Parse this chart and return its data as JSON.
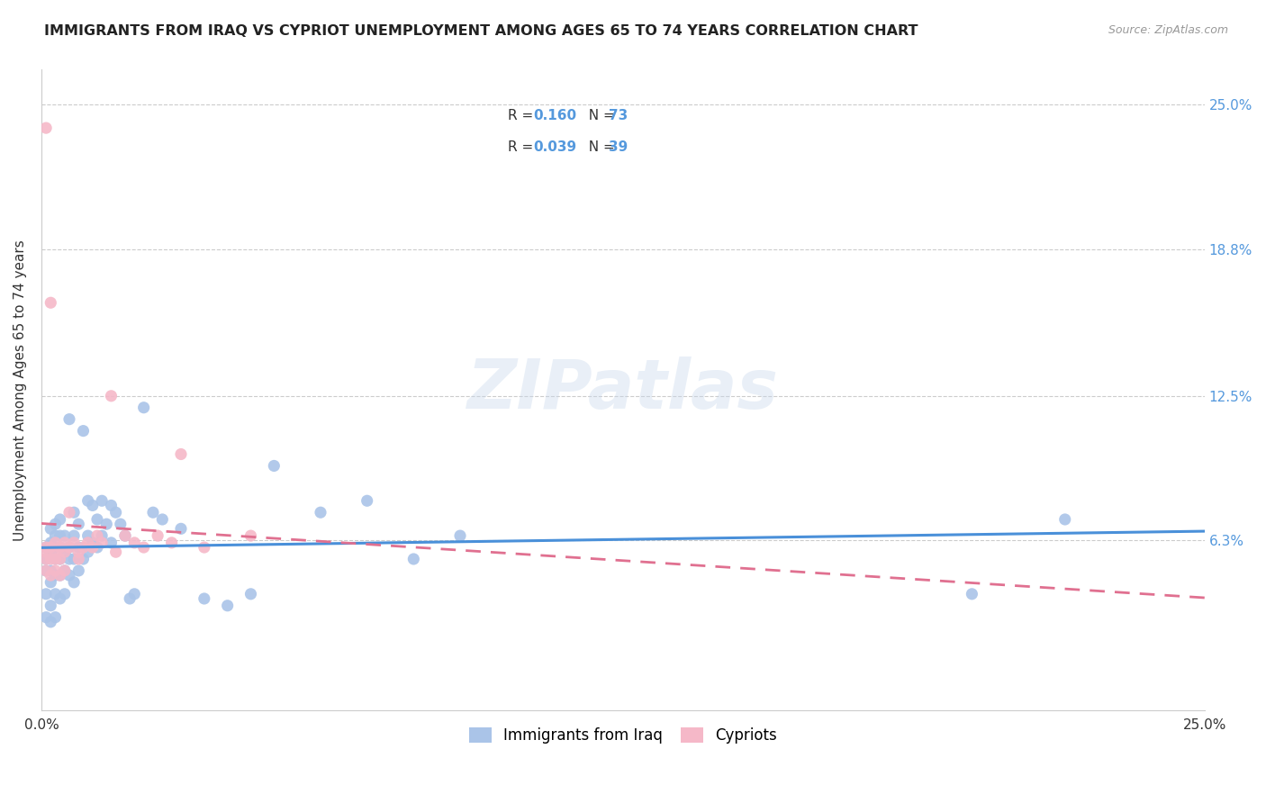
{
  "title": "IMMIGRANTS FROM IRAQ VS CYPRIOT UNEMPLOYMENT AMONG AGES 65 TO 74 YEARS CORRELATION CHART",
  "source": "Source: ZipAtlas.com",
  "ylabel": "Unemployment Among Ages 65 to 74 years",
  "xlim": [
    0.0,
    0.25
  ],
  "ylim": [
    -0.01,
    0.265
  ],
  "blue_R": "0.160",
  "blue_N": "73",
  "pink_R": "0.039",
  "pink_N": "39",
  "blue_color": "#aac4e8",
  "pink_color": "#f5b8c8",
  "blue_line_color": "#4a90d9",
  "pink_line_color": "#e07090",
  "right_label_color": "#5599dd",
  "watermark": "ZIPatlas",
  "background_color": "#ffffff",
  "grid_color": "#cccccc",
  "ytick_vals": [
    0.063,
    0.125,
    0.188,
    0.25
  ],
  "ytick_labels": [
    "6.3%",
    "12.5%",
    "18.8%",
    "25.0%"
  ],
  "blue_scatter_x": [
    0.001,
    0.001,
    0.001,
    0.001,
    0.001,
    0.002,
    0.002,
    0.002,
    0.002,
    0.002,
    0.002,
    0.002,
    0.003,
    0.003,
    0.003,
    0.003,
    0.003,
    0.003,
    0.003,
    0.004,
    0.004,
    0.004,
    0.004,
    0.004,
    0.004,
    0.005,
    0.005,
    0.005,
    0.005,
    0.006,
    0.006,
    0.006,
    0.006,
    0.007,
    0.007,
    0.007,
    0.007,
    0.008,
    0.008,
    0.008,
    0.009,
    0.009,
    0.01,
    0.01,
    0.01,
    0.011,
    0.011,
    0.012,
    0.012,
    0.013,
    0.013,
    0.014,
    0.015,
    0.015,
    0.016,
    0.017,
    0.018,
    0.019,
    0.02,
    0.022,
    0.024,
    0.026,
    0.03,
    0.035,
    0.04,
    0.045,
    0.05,
    0.06,
    0.07,
    0.08,
    0.09,
    0.2,
    0.22
  ],
  "blue_scatter_y": [
    0.03,
    0.04,
    0.05,
    0.055,
    0.06,
    0.028,
    0.035,
    0.045,
    0.05,
    0.058,
    0.062,
    0.068,
    0.03,
    0.04,
    0.048,
    0.055,
    0.06,
    0.065,
    0.07,
    0.038,
    0.048,
    0.055,
    0.06,
    0.065,
    0.072,
    0.04,
    0.05,
    0.058,
    0.065,
    0.048,
    0.055,
    0.06,
    0.115,
    0.045,
    0.055,
    0.065,
    0.075,
    0.05,
    0.06,
    0.07,
    0.055,
    0.11,
    0.058,
    0.065,
    0.08,
    0.062,
    0.078,
    0.06,
    0.072,
    0.065,
    0.08,
    0.07,
    0.062,
    0.078,
    0.075,
    0.07,
    0.065,
    0.038,
    0.04,
    0.12,
    0.075,
    0.072,
    0.068,
    0.038,
    0.035,
    0.04,
    0.095,
    0.075,
    0.08,
    0.055,
    0.065,
    0.04,
    0.072
  ],
  "pink_scatter_x": [
    0.001,
    0.001,
    0.001,
    0.001,
    0.001,
    0.002,
    0.002,
    0.002,
    0.002,
    0.003,
    0.003,
    0.003,
    0.003,
    0.004,
    0.004,
    0.004,
    0.005,
    0.005,
    0.005,
    0.006,
    0.006,
    0.007,
    0.008,
    0.008,
    0.009,
    0.01,
    0.011,
    0.012,
    0.013,
    0.015,
    0.016,
    0.018,
    0.02,
    0.022,
    0.025,
    0.028,
    0.03,
    0.035,
    0.045
  ],
  "pink_scatter_y": [
    0.24,
    0.055,
    0.06,
    0.058,
    0.05,
    0.055,
    0.06,
    0.048,
    0.165,
    0.058,
    0.062,
    0.05,
    0.055,
    0.06,
    0.055,
    0.048,
    0.058,
    0.062,
    0.05,
    0.06,
    0.075,
    0.062,
    0.058,
    0.055,
    0.06,
    0.062,
    0.06,
    0.065,
    0.062,
    0.125,
    0.058,
    0.065,
    0.062,
    0.06,
    0.065,
    0.062,
    0.1,
    0.06,
    0.065
  ]
}
